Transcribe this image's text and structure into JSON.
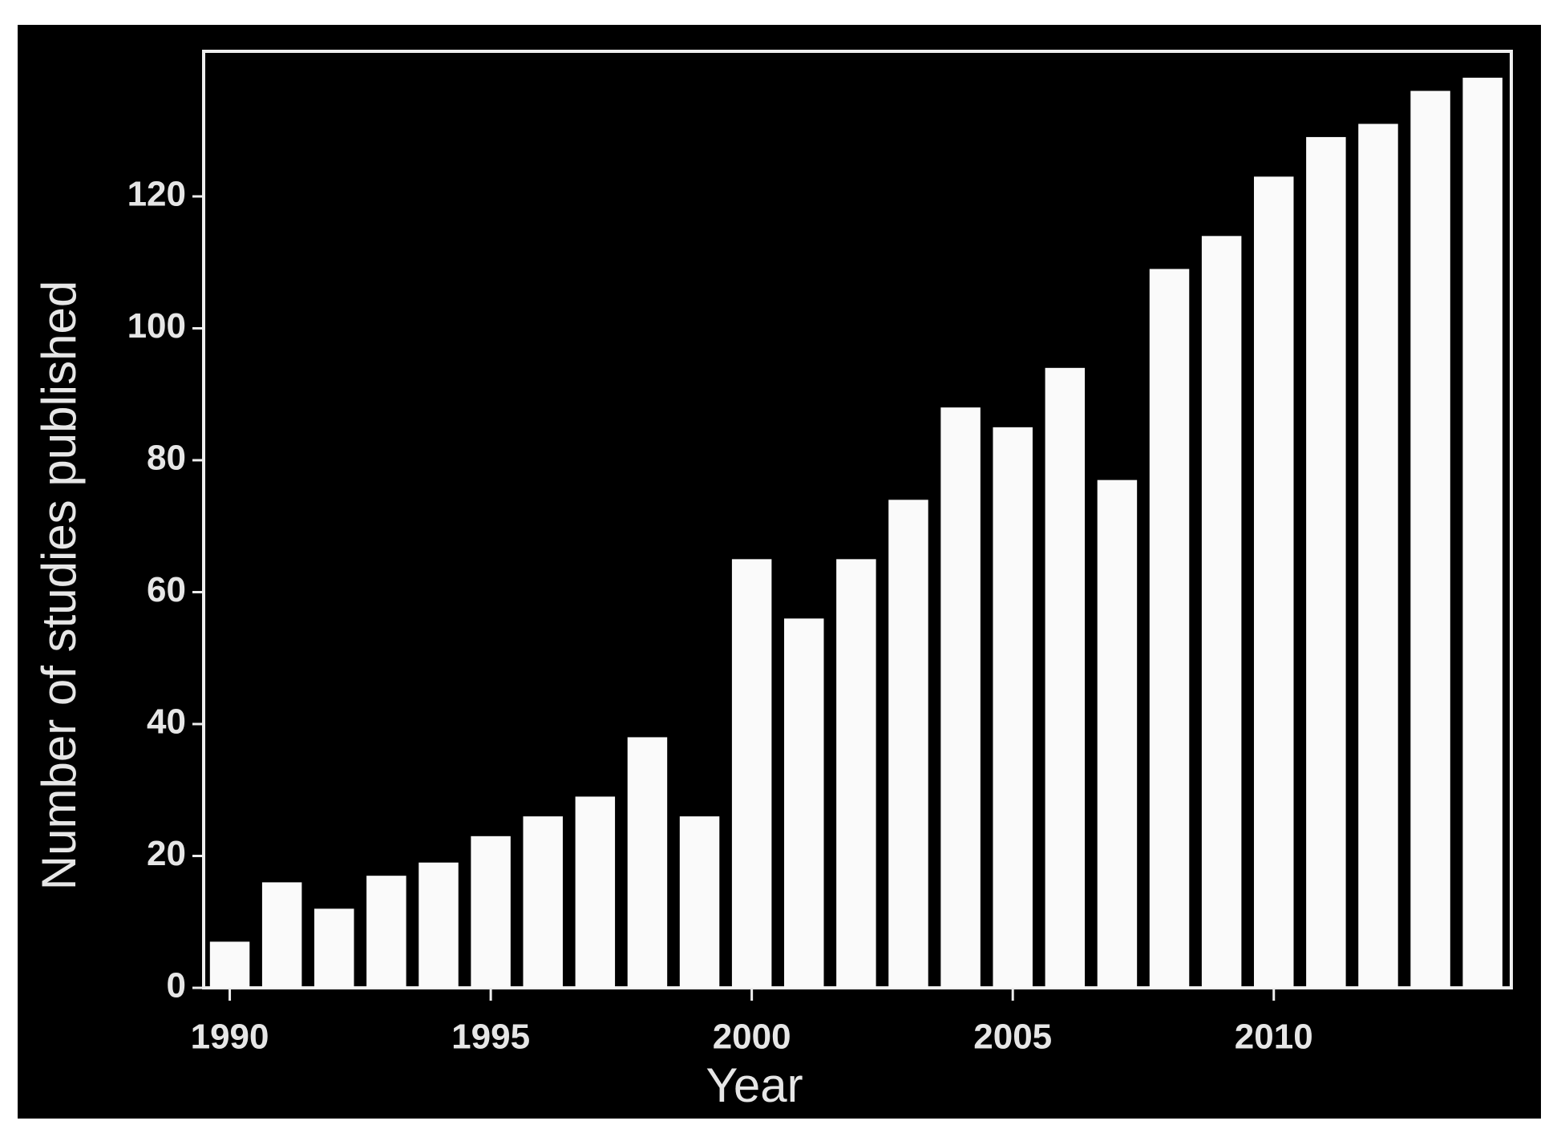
{
  "chart_data": {
    "type": "bar",
    "x": [
      1990,
      1991,
      1992,
      1993,
      1994,
      1995,
      1996,
      1997,
      1998,
      1999,
      2000,
      2001,
      2002,
      2003,
      2004,
      2005,
      2006,
      2007,
      2008,
      2009,
      2010,
      2011,
      2012,
      2013,
      2014
    ],
    "values": [
      7,
      16,
      12,
      17,
      19,
      23,
      26,
      29,
      38,
      26,
      65,
      56,
      65,
      74,
      88,
      85,
      94,
      77,
      109,
      114,
      123,
      129,
      131,
      136,
      138
    ],
    "color": "#fafafa",
    "x_label": "Year",
    "y_label": "Number of studies published",
    "xlim": [
      1989.5,
      2014.55
    ],
    "xticks": [
      1990,
      1995,
      2000,
      2005,
      2010
    ],
    "ylim": [
      0,
      142
    ],
    "yticks": [
      0,
      20,
      40,
      60,
      80,
      100,
      120
    ],
    "grid": false
  }
}
